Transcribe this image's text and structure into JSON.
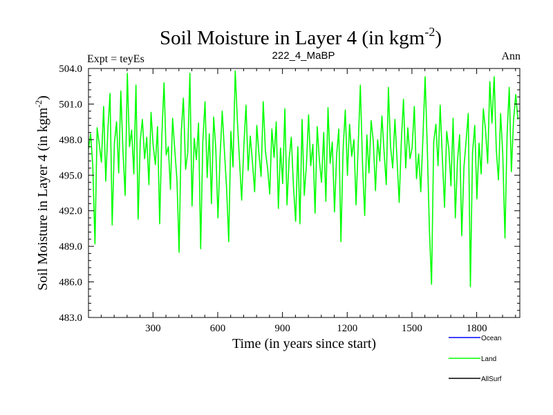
{
  "chart_data": {
    "type": "line",
    "title": "Soil Moisture in Layer 4 (in kgm",
    "title_sup": "-2",
    "title_close": ")",
    "subtitle_left": "Expt = teyEs",
    "subtitle_center": "222_4_MaBP",
    "subtitle_right": "Ann",
    "xlabel": "Time (in years since start)",
    "ylabel": "Soil Moisture in Layer 4 (in kgm",
    "ylabel_sup": "-2",
    "ylabel_close": ")",
    "xlim": [
      1,
      2000
    ],
    "ylim": [
      483.0,
      504.0
    ],
    "x_ticks": [
      300,
      600,
      900,
      1200,
      1500,
      1800
    ],
    "x_tick_labels": [
      "300",
      "600",
      "900",
      "1200",
      "1500",
      "1800"
    ],
    "y_ticks": [
      483.0,
      486.0,
      489.0,
      492.0,
      495.0,
      498.0,
      501.0,
      504.0
    ],
    "y_tick_labels": [
      "483.0",
      "486.0",
      "489.0",
      "492.0",
      "495.0",
      "498.0",
      "501.0",
      "504.0"
    ],
    "legend": [
      {
        "name": "Ocean",
        "color": "#0000ff"
      },
      {
        "name": "Land",
        "color": "#00ff00"
      },
      {
        "name": "AllSurf",
        "color": "#000000"
      }
    ],
    "series": [
      {
        "name": "Land",
        "color": "#00ff00",
        "x_start": 1,
        "x_step": 10,
        "values": [
          497.2,
          498.5,
          495.8,
          489.2,
          499.0,
          497.6,
          496.1,
          500.8,
          494.5,
          498.9,
          501.9,
          490.8,
          497.7,
          499.5,
          495.2,
          502.1,
          497.0,
          493.3,
          503.6,
          497.4,
          498.8,
          495.1,
          502.6,
          491.3,
          497.9,
          499.7,
          496.4,
          498.2,
          494.2,
          500.3,
          497.5,
          495.9,
          499.1,
          490.9,
          498.3,
          502.8,
          496.7,
          497.4,
          493.8,
          499.8,
          497.1,
          494.6,
          488.5,
          498.6,
          501.5,
          495.5,
          496.9,
          503.6,
          492.4,
          498.1,
          496.3,
          499.4,
          488.8,
          497.8,
          501.2,
          494.8,
          498.5,
          492.6,
          499.9,
          497.2,
          491.4,
          496.6,
          500.4,
          497.0,
          493.9,
          489.4,
          498.7,
          495.7,
          503.8,
          499.6,
          496.2,
          492.9,
          497.5,
          500.9,
          495.4,
          498.3,
          496.1,
          493.6,
          499.2,
          496.8,
          494.9,
          501.2,
          497.0,
          495.6,
          493.4,
          498.9,
          496.5,
          499.5,
          492.2,
          497.3,
          494.3,
          500.6,
          492.5,
          496.4,
          498.2,
          494.1,
          491.1,
          497.4,
          490.9,
          499.7,
          493.3,
          495.9,
          500.1,
          495.8,
          497.6,
          491.8,
          499.1,
          496.3,
          494.4,
          498.6,
          492.8,
          500.7,
          496.0,
          497.8,
          491.9,
          496.7,
          498.9,
          489.4,
          497.1,
          500.5,
          495.0,
          499.3,
          496.6,
          498.0,
          492.5,
          497.5,
          502.6,
          496.0,
          491.6,
          498.4,
          495.2,
          499.6,
          497.9,
          493.7,
          498.0,
          496.2,
          500.0,
          496.9,
          494.2,
          502.4,
          497.4,
          495.6,
          499.7,
          496.3,
          492.7,
          497.9,
          501.4,
          495.6,
          499.0,
          496.4,
          497.3,
          500.8,
          494.7,
          496.8,
          493.6,
          498.1,
          503.3,
          497.4,
          490.4,
          485.8,
          497.8,
          499.3,
          495.8,
          500.9,
          496.5,
          492.3,
          498.7,
          497.2,
          494.1,
          499.8,
          491.4,
          496.2,
          498.4,
          489.9,
          495.7,
          497.9,
          500.2,
          485.6,
          496.9,
          499.2,
          493.0,
          497.7,
          495.1,
          500.6,
          498.8,
          496.0,
          502.9,
          499.4,
          503.3,
          497.1,
          494.6,
          500.2,
          496.8,
          489.7,
          498.4,
          502.4,
          495.3,
          499.6,
          501.8,
          499.7
        ]
      }
    ]
  }
}
